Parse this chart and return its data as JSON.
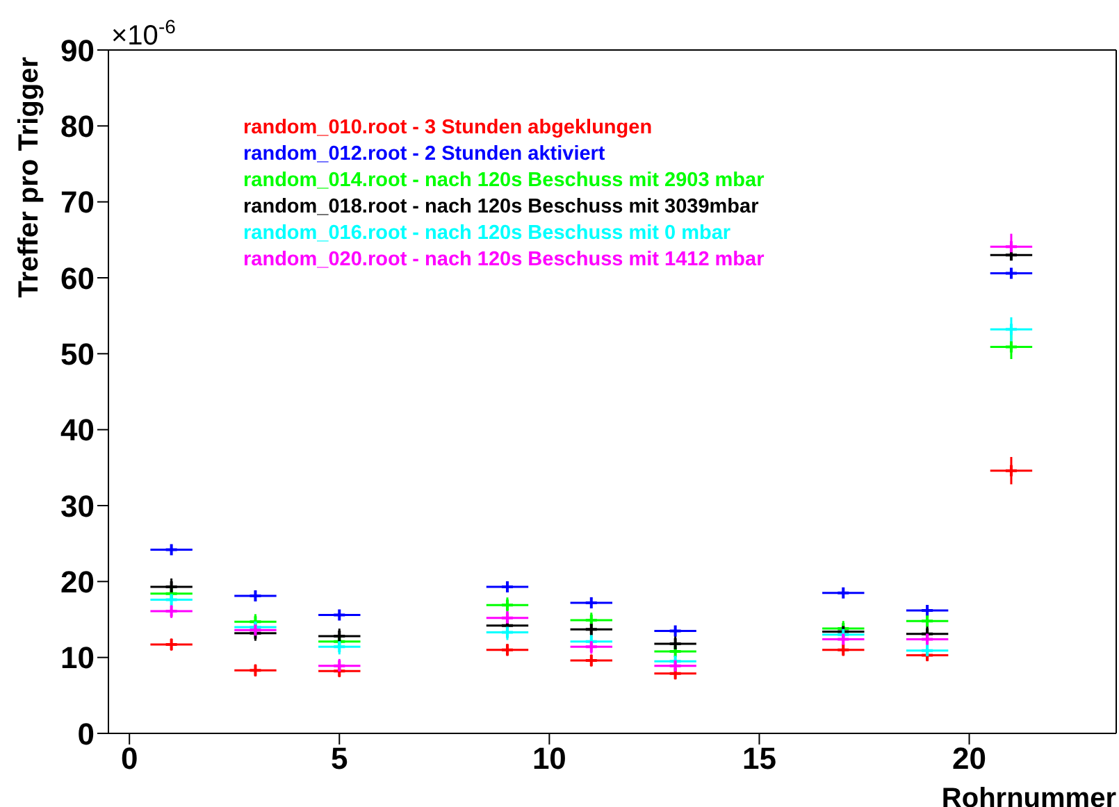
{
  "chart_data": {
    "type": "scatter",
    "ylabel": "Treffer pro Trigger",
    "xlabel": "Rohrnummer",
    "annotations": [
      "×10$^{-6}$"
    ],
    "x": [
      1,
      3,
      5,
      9,
      11,
      13,
      17,
      19,
      21
    ],
    "xlim": [
      -0.5,
      23.5
    ],
    "xticks": [
      0,
      5,
      10,
      15,
      20
    ],
    "ylim": [
      0,
      90
    ],
    "yticks": [
      0,
      10,
      20,
      30,
      40,
      50,
      60,
      70,
      80,
      90
    ],
    "grid": false,
    "marker": "cross",
    "series": [
      {
        "name": "random_010.root - 3 Stunden abgeklungen",
        "color": "#ff0000",
        "values": [
          11.7,
          8.3,
          8.2,
          11.0,
          9.6,
          7.9,
          11.0,
          10.3,
          34.6
        ],
        "errors": [
          0.8,
          0.8,
          0.8,
          0.8,
          0.8,
          0.8,
          0.8,
          0.8,
          1.8
        ],
        "xerrors": [
          0.5,
          0.5,
          0.5,
          0.5,
          0.5,
          0.5,
          0.5,
          0.5,
          0.5
        ]
      },
      {
        "name": "random_012.root - 2 Stunden aktiviert",
        "color": "#0000ff",
        "values": [
          24.2,
          18.1,
          15.6,
          19.3,
          17.2,
          13.5,
          18.5,
          16.2,
          60.6
        ],
        "errors": [
          0.2,
          0.2,
          0.2,
          0.2,
          0.2,
          0.2,
          0.2,
          0.2,
          0.5
        ],
        "xerrors": [
          0.5,
          0.5,
          0.5,
          0.5,
          0.5,
          0.5,
          0.5,
          0.5,
          0.5
        ]
      },
      {
        "name": "random_014.root - nach 120s Beschuss mit 2903 mbar",
        "color": "#00ff00",
        "values": [
          18.4,
          14.7,
          12.1,
          16.9,
          14.9,
          10.8,
          13.8,
          14.8,
          50.9
        ],
        "errors": [
          0.5,
          1.0,
          0.4,
          1.0,
          1.0,
          0.5,
          1.0,
          1.0,
          1.6
        ],
        "xerrors": [
          0.5,
          0.5,
          0.5,
          0.5,
          0.5,
          0.5,
          0.5,
          0.5,
          0.5
        ]
      },
      {
        "name": "random_018.root - nach 120s Beschuss mit 3039mbar",
        "color": "#000000",
        "values": [
          19.3,
          13.2,
          12.8,
          14.2,
          13.7,
          11.8,
          13.4,
          13.1,
          63.0
        ],
        "errors": [
          1.1,
          1.0,
          1.0,
          0.5,
          1.0,
          1.0,
          1.0,
          1.0,
          0.6
        ],
        "xerrors": [
          0.5,
          0.5,
          0.5,
          0.5,
          0.5,
          0.5,
          0.5,
          0.5,
          0.5
        ]
      },
      {
        "name": "random_016.root - nach 120s Beschuss mit 0 mbar",
        "color": "#00ffff",
        "values": [
          17.6,
          14.0,
          11.4,
          13.3,
          12.1,
          9.5,
          13.0,
          10.9,
          53.2
        ],
        "errors": [
          1.0,
          1.0,
          1.0,
          1.0,
          1.0,
          1.0,
          1.0,
          1.0,
          1.6
        ],
        "xerrors": [
          0.5,
          0.5,
          0.5,
          0.5,
          0.5,
          0.5,
          0.5,
          0.5,
          0.5
        ]
      },
      {
        "name": "random_020.root - nach 120s Beschuss mit 1412 mbar",
        "color": "#ff00ff",
        "values": [
          16.1,
          13.6,
          8.9,
          15.2,
          11.4,
          8.9,
          12.4,
          12.4,
          64.1
        ],
        "errors": [
          0.9,
          0.9,
          0.9,
          0.9,
          0.9,
          0.9,
          0.9,
          0.5,
          1.7
        ],
        "xerrors": [
          0.5,
          0.5,
          0.5,
          0.5,
          0.5,
          0.5,
          0.5,
          0.5,
          0.5
        ]
      }
    ]
  }
}
